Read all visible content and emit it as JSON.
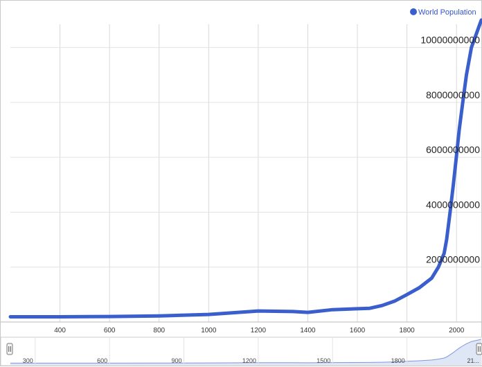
{
  "chart_data": {
    "type": "line",
    "title": "",
    "xlabel": "",
    "ylabel": "",
    "legend": {
      "position": "top-right",
      "entries": [
        "World Population"
      ]
    },
    "grid": true,
    "xlim": [
      200,
      2100
    ],
    "ylim": [
      0,
      11000000000
    ],
    "x_ticks": [
      "400",
      "600",
      "800",
      "1000",
      "1200",
      "1400",
      "1600",
      "1800",
      "2000"
    ],
    "y_ticks": [
      "2000000000",
      "4000000000",
      "6000000000",
      "8000000000",
      "10000000000"
    ],
    "series": [
      {
        "name": "World Population",
        "color": "#3a5fcd",
        "points": [
          [
            200,
            190000000
          ],
          [
            400,
            190000000
          ],
          [
            600,
            200000000
          ],
          [
            800,
            220000000
          ],
          [
            1000,
            275000000
          ],
          [
            1200,
            400000000
          ],
          [
            1340,
            380000000
          ],
          [
            1400,
            350000000
          ],
          [
            1500,
            450000000
          ],
          [
            1650,
            500000000
          ],
          [
            1700,
            600000000
          ],
          [
            1750,
            760000000
          ],
          [
            1800,
            1000000000
          ],
          [
            1850,
            1250000000
          ],
          [
            1900,
            1600000000
          ],
          [
            1927,
            2000000000
          ],
          [
            1950,
            2500000000
          ],
          [
            1960,
            3000000000
          ],
          [
            1974,
            4000000000
          ],
          [
            1987,
            5000000000
          ],
          [
            1999,
            6000000000
          ],
          [
            2011,
            7000000000
          ],
          [
            2025,
            8000000000
          ],
          [
            2040,
            9000000000
          ],
          [
            2060,
            10000000000
          ],
          [
            2100,
            11000000000
          ]
        ]
      }
    ],
    "navigator": {
      "tick_labels": [
        "300",
        "600",
        "900",
        "1200",
        "1500",
        "1800",
        "21..."
      ],
      "handle_left_icon": "pause-grip-icon",
      "handle_right_icon": "pause-grip-icon"
    }
  }
}
